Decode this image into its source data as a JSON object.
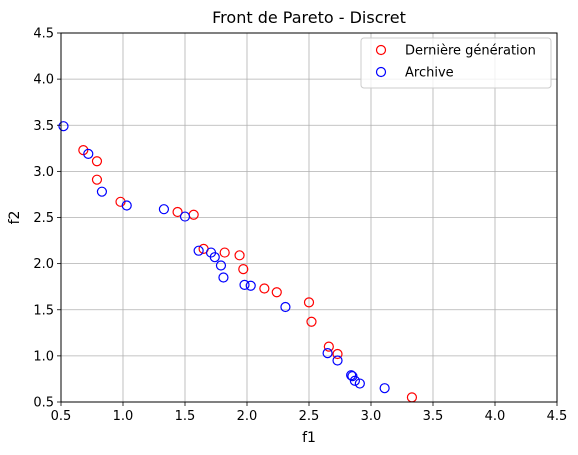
{
  "chart_data": {
    "type": "scatter",
    "title": "Front de Pareto - Discret",
    "xlabel": "f1",
    "ylabel": "f2",
    "xlim": [
      0.5,
      4.5
    ],
    "ylim": [
      0.5,
      4.5
    ],
    "xticks": [
      "0.5",
      "1.0",
      "1.5",
      "2.0",
      "2.5",
      "3.0",
      "3.5",
      "4.0",
      "4.5"
    ],
    "yticks": [
      "0.5",
      "1.0",
      "1.5",
      "2.0",
      "2.5",
      "3.0",
      "3.5",
      "4.0",
      "4.5"
    ],
    "grid": true,
    "legend_position": "top-right",
    "series": [
      {
        "name": "Dernière génération",
        "color": "#ff0000",
        "marker": "open-circle",
        "points": [
          [
            0.68,
            3.23
          ],
          [
            0.79,
            3.11
          ],
          [
            0.79,
            2.91
          ],
          [
            0.98,
            2.67
          ],
          [
            1.44,
            2.56
          ],
          [
            1.57,
            2.53
          ],
          [
            1.65,
            2.16
          ],
          [
            1.82,
            2.12
          ],
          [
            1.94,
            2.09
          ],
          [
            1.97,
            1.94
          ],
          [
            2.14,
            1.73
          ],
          [
            2.24,
            1.69
          ],
          [
            2.5,
            1.58
          ],
          [
            2.52,
            1.37
          ],
          [
            2.66,
            1.1
          ],
          [
            2.73,
            1.02
          ],
          [
            3.33,
            0.55
          ]
        ]
      },
      {
        "name": "Archive",
        "color": "#0000ff",
        "marker": "open-circle",
        "points": [
          [
            0.52,
            3.49
          ],
          [
            0.72,
            3.19
          ],
          [
            0.83,
            2.78
          ],
          [
            1.03,
            2.63
          ],
          [
            1.33,
            2.59
          ],
          [
            1.5,
            2.51
          ],
          [
            1.61,
            2.14
          ],
          [
            1.71,
            2.12
          ],
          [
            1.74,
            2.07
          ],
          [
            1.79,
            1.98
          ],
          [
            1.81,
            1.85
          ],
          [
            1.98,
            1.77
          ],
          [
            2.03,
            1.76
          ],
          [
            2.31,
            1.53
          ],
          [
            2.65,
            1.03
          ],
          [
            2.73,
            0.95
          ],
          [
            2.84,
            0.79
          ],
          [
            2.85,
            0.78
          ],
          [
            2.87,
            0.73
          ],
          [
            2.91,
            0.7
          ],
          [
            3.11,
            0.65
          ]
        ]
      }
    ]
  }
}
